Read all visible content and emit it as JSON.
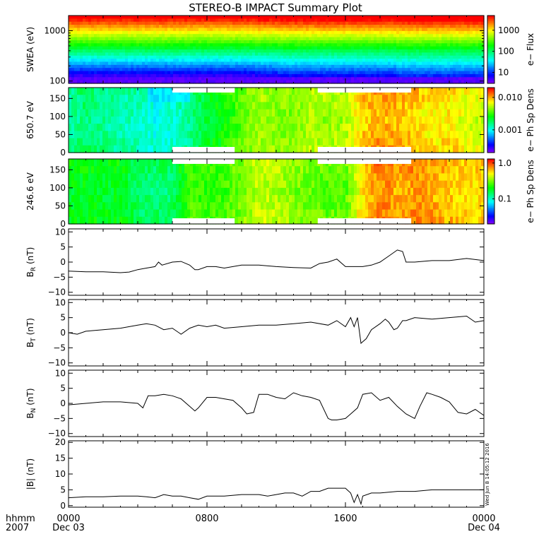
{
  "title": "STEREO-B IMPACT Summary Plot",
  "footer": {
    "hhmm_label": "hhmm",
    "year_label": "2007",
    "stamp": "Wed Jun  8 14:05:12 2016"
  },
  "chart_data": [
    {
      "id": "swea",
      "type": "heatmap",
      "ylabel": "SWEA (eV)",
      "yscale": "log",
      "ylim": [
        90,
        2000
      ],
      "yticks": [
        {
          "v": 100,
          "label": "100"
        },
        {
          "v": 1000,
          "label": "1000"
        }
      ],
      "colorbar": {
        "label": "e− Flux",
        "scale": "log",
        "range": [
          3,
          5000
        ],
        "ticks": [
          {
            "v": 10,
            "label": "10"
          },
          {
            "v": 100,
            "label": "100"
          },
          {
            "v": 1000,
            "label": "1000"
          }
        ]
      }
    },
    {
      "id": "pad650",
      "type": "heatmap",
      "ylabel": "650.7 eV",
      "ylim": [
        0,
        180
      ],
      "yticks": [
        {
          "v": 0,
          "label": "0"
        },
        {
          "v": 50,
          "label": "50"
        },
        {
          "v": 100,
          "label": "100"
        },
        {
          "v": 150,
          "label": "150"
        }
      ],
      "colorbar": {
        "label": "e− Ph Sp Dens",
        "scale": "log",
        "range": [
          0.0002,
          0.02
        ],
        "ticks": [
          {
            "v": 0.001,
            "label": "0.001"
          },
          {
            "v": 0.01,
            "label": "0.010"
          }
        ]
      },
      "coarse_columns": [
        {
          "h": 0.0,
          "level": 0.4
        },
        {
          "h": 1.0,
          "level": 0.45
        },
        {
          "h": 2.0,
          "level": 0.42
        },
        {
          "h": 3.0,
          "level": 0.4
        },
        {
          "h": 4.0,
          "level": 0.38
        },
        {
          "h": 5.0,
          "level": 0.34
        },
        {
          "h": 6.0,
          "level": 0.36
        },
        {
          "h": 7.0,
          "level": 0.42
        },
        {
          "h": 8.0,
          "level": 0.5
        },
        {
          "h": 9.0,
          "level": 0.55
        },
        {
          "h": 10.0,
          "level": 0.62
        },
        {
          "h": 11.0,
          "level": 0.68
        },
        {
          "h": 12.0,
          "level": 0.66
        },
        {
          "h": 13.0,
          "level": 0.66
        },
        {
          "h": 14.0,
          "level": 0.7
        },
        {
          "h": 15.0,
          "level": 0.68
        },
        {
          "h": 16.0,
          "level": 0.7
        },
        {
          "h": 17.0,
          "level": 0.8
        },
        {
          "h": 18.0,
          "level": 0.84
        },
        {
          "h": 19.0,
          "level": 0.82
        },
        {
          "h": 20.0,
          "level": 0.8
        },
        {
          "h": 21.0,
          "level": 0.76
        },
        {
          "h": 22.0,
          "level": 0.78
        },
        {
          "h": 23.0,
          "level": 0.74
        },
        {
          "h": 24.0,
          "level": 0.72
        }
      ]
    },
    {
      "id": "pad246",
      "type": "heatmap",
      "ylabel": "246.6 eV",
      "ylim": [
        0,
        180
      ],
      "yticks": [
        {
          "v": 0,
          "label": "0"
        },
        {
          "v": 50,
          "label": "50"
        },
        {
          "v": 100,
          "label": "100"
        },
        {
          "v": 150,
          "label": "150"
        }
      ],
      "colorbar": {
        "label": "e− Ph Sp Dens",
        "scale": "log",
        "range": [
          0.02,
          1.3
        ],
        "ticks": [
          {
            "v": 0.1,
            "label": "0.1"
          },
          {
            "v": 1.0,
            "label": "1.0"
          }
        ]
      },
      "coarse_columns": [
        {
          "h": 0.0,
          "level": 0.52
        },
        {
          "h": 1.0,
          "level": 0.53
        },
        {
          "h": 2.0,
          "level": 0.52
        },
        {
          "h": 3.0,
          "level": 0.52
        },
        {
          "h": 4.0,
          "level": 0.46
        },
        {
          "h": 5.0,
          "level": 0.45
        },
        {
          "h": 6.0,
          "level": 0.46
        },
        {
          "h": 7.0,
          "level": 0.6
        },
        {
          "h": 8.0,
          "level": 0.58
        },
        {
          "h": 9.0,
          "level": 0.6
        },
        {
          "h": 10.0,
          "level": 0.64
        },
        {
          "h": 11.0,
          "level": 0.72
        },
        {
          "h": 12.0,
          "level": 0.7
        },
        {
          "h": 13.0,
          "level": 0.66
        },
        {
          "h": 14.0,
          "level": 0.64
        },
        {
          "h": 15.0,
          "level": 0.62
        },
        {
          "h": 16.0,
          "level": 0.62
        },
        {
          "h": 17.0,
          "level": 0.8
        },
        {
          "h": 18.0,
          "level": 0.88
        },
        {
          "h": 19.0,
          "level": 0.84
        },
        {
          "h": 20.0,
          "level": 0.86
        },
        {
          "h": 21.0,
          "level": 0.84
        },
        {
          "h": 22.0,
          "level": 0.82
        },
        {
          "h": 23.0,
          "level": 0.8
        },
        {
          "h": 24.0,
          "level": 0.8
        }
      ]
    },
    {
      "id": "br",
      "type": "line",
      "ylabel": "B_R (nT)",
      "ylim": [
        -11,
        11
      ],
      "yticks": [
        {
          "v": -10,
          "label": "−10"
        },
        {
          "v": -5,
          "label": "−5"
        },
        {
          "v": 0,
          "label": "0"
        },
        {
          "v": 5,
          "label": "5"
        },
        {
          "v": 10,
          "label": "10"
        }
      ],
      "x": [
        0,
        1,
        2,
        3,
        3.5,
        4,
        4.5,
        5,
        5.2,
        5.4,
        6,
        6.5,
        7,
        7.3,
        7.5,
        8,
        8.5,
        9,
        10,
        11,
        12,
        13,
        14,
        14.5,
        15,
        15.5,
        16,
        17,
        17.5,
        18,
        18.5,
        19,
        19.3,
        19.5,
        19.6,
        20,
        21,
        22,
        23,
        24
      ],
      "y": [
        -3,
        -3.2,
        -3.2,
        -3.5,
        -3.3,
        -2.5,
        -2,
        -1.5,
        0,
        -1,
        0,
        0.2,
        -1,
        -2.5,
        -2.5,
        -1.5,
        -1.5,
        -2,
        -1,
        -1,
        -1.5,
        -1.8,
        -2,
        -0.5,
        0,
        1,
        -1.5,
        -1.5,
        -1,
        0,
        2,
        4,
        3.5,
        0,
        0,
        0,
        0.5,
        0.5,
        1.2,
        0.5
      ]
    },
    {
      "id": "bt",
      "type": "line",
      "ylabel": "B_T (nT)",
      "ylim": [
        -11,
        11
      ],
      "yticks": [
        {
          "v": -10,
          "label": "−10"
        },
        {
          "v": -5,
          "label": "−5"
        },
        {
          "v": 0,
          "label": "0"
        },
        {
          "v": 5,
          "label": "5"
        },
        {
          "v": 10,
          "label": "10"
        }
      ],
      "x": [
        0,
        0.5,
        1,
        2,
        3,
        4,
        4.5,
        5,
        5.5,
        6,
        6.5,
        7,
        7.5,
        8,
        8.5,
        9,
        10,
        11,
        12,
        13,
        14,
        15,
        15.5,
        16,
        16.3,
        16.5,
        16.7,
        16.9,
        17,
        17.2,
        17.5,
        18,
        18.3,
        18.5,
        18.8,
        19,
        19.3,
        19.5,
        20,
        21,
        22,
        23,
        23.5,
        24
      ],
      "y": [
        0,
        -0.5,
        0.5,
        1,
        1.5,
        2.5,
        3,
        2.5,
        1,
        1.5,
        -0.5,
        1.5,
        2.5,
        2,
        2.5,
        1.5,
        2,
        2.5,
        2.5,
        3,
        3.5,
        2.5,
        4,
        2,
        5,
        2,
        5,
        -3.5,
        -3,
        -2,
        1,
        3,
        4.5,
        3.5,
        1,
        1.5,
        4,
        4,
        5,
        4.5,
        5,
        5.5,
        3.5,
        4
      ]
    },
    {
      "id": "bn",
      "type": "line",
      "ylabel": "B_N (nT)",
      "ylim": [
        -11,
        11
      ],
      "yticks": [
        {
          "v": -10,
          "label": "−10"
        },
        {
          "v": -5,
          "label": "−5"
        },
        {
          "v": 0,
          "label": "0"
        },
        {
          "v": 5,
          "label": "5"
        },
        {
          "v": 10,
          "label": "10"
        }
      ],
      "x": [
        0,
        1,
        2,
        3,
        4,
        4.3,
        4.6,
        5,
        5.5,
        6,
        6.5,
        7,
        7.3,
        7.5,
        8,
        8.5,
        9,
        9.5,
        10,
        10.3,
        10.7,
        11,
        11.5,
        12,
        12.5,
        13,
        13.5,
        14,
        14.5,
        15,
        15.2,
        15.5,
        16,
        16.3,
        16.7,
        17,
        17.5,
        18,
        18.5,
        19,
        19.5,
        20,
        20.3,
        20.7,
        21,
        21.5,
        22,
        22.5,
        23,
        23.5,
        24
      ],
      "y": [
        -0.5,
        0,
        0.5,
        0.5,
        0,
        -1.5,
        2.5,
        2.5,
        3,
        2.5,
        1.5,
        -1,
        -2.5,
        -1.5,
        2,
        2,
        1.5,
        1,
        -1.5,
        -3.5,
        -3,
        3,
        3,
        2,
        1.5,
        3.5,
        2.5,
        2,
        1,
        -5,
        -5.5,
        -5.5,
        -5,
        -3.5,
        -1.5,
        3,
        3.5,
        1,
        2,
        -1,
        -3.5,
        -5,
        -1,
        3.5,
        3,
        2,
        0.5,
        -3,
        -3.5,
        -2,
        -4
      ]
    },
    {
      "id": "bmag",
      "type": "line",
      "ylabel": "|B| (nT)",
      "ylim": [
        -0.5,
        20.5
      ],
      "yticks": [
        {
          "v": 0,
          "label": "0"
        },
        {
          "v": 5,
          "label": "5"
        },
        {
          "v": 10,
          "label": "10"
        },
        {
          "v": 15,
          "label": "15"
        },
        {
          "v": 20,
          "label": "20"
        }
      ],
      "x": [
        0,
        1,
        2,
        3,
        4,
        4.5,
        5,
        5.5,
        6,
        6.5,
        7,
        7.5,
        8,
        9,
        10,
        11,
        11.5,
        12,
        12.5,
        13,
        13.5,
        14,
        14.5,
        15,
        15.5,
        16,
        16.3,
        16.5,
        16.7,
        16.9,
        17,
        17.5,
        18,
        19,
        20,
        21,
        22,
        23,
        24
      ],
      "y": [
        2.5,
        2.8,
        2.8,
        3,
        3,
        2.8,
        2.5,
        3.5,
        3,
        3,
        2.5,
        2,
        3,
        3,
        3.5,
        3.5,
        3,
        3.5,
        4,
        4,
        3,
        4.5,
        4.5,
        5.5,
        5.5,
        5.5,
        4,
        1,
        3.5,
        0.5,
        3,
        4,
        4,
        4.5,
        4.5,
        5,
        5,
        5,
        5
      ]
    }
  ],
  "xaxis": {
    "tick_labels": [
      {
        "h": 0,
        "top": "0000",
        "bottom": "Dec 03"
      },
      {
        "h": 8,
        "top": "0800",
        "bottom": ""
      },
      {
        "h": 16,
        "top": "1600",
        "bottom": ""
      },
      {
        "h": 24,
        "top": "0000",
        "bottom": "Dec 04"
      }
    ],
    "range_hours": [
      0,
      24
    ]
  }
}
